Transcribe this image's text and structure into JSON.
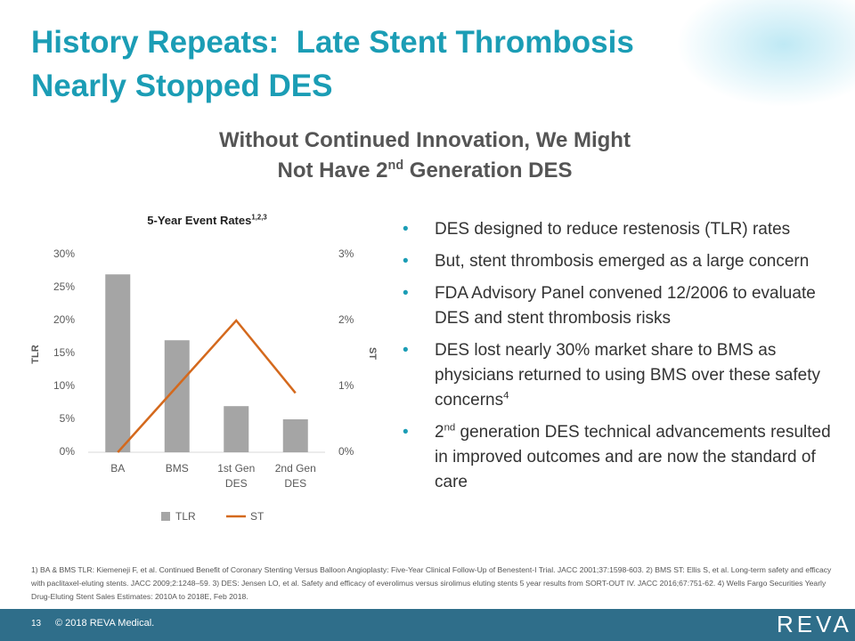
{
  "title_lines": [
    "History Repeats:  Late Stent Thrombosis",
    "Nearly Stopped DES"
  ],
  "subtitle": {
    "line1": "Without Continued Innovation, We Might",
    "line2": [
      {
        "text": "Not Have 2"
      },
      {
        "sup": "nd"
      },
      {
        "text": " Generation DES"
      }
    ]
  },
  "chart_data": {
    "type": "bar-line",
    "title": "5-Year Event Rates",
    "title_sup": "1,2,3",
    "categories": [
      "BA",
      "BMS",
      "1st Gen DES",
      "2nd Gen DES"
    ],
    "series": [
      {
        "name": "TLR",
        "type": "bar",
        "color": "#a5a5a5",
        "values": [
          27,
          17,
          7,
          5
        ]
      },
      {
        "name": "ST",
        "type": "line",
        "axis": "y2",
        "color": "#d4691d",
        "values": [
          0,
          1.0,
          2.0,
          0.9
        ]
      }
    ],
    "ylabel": "TLR",
    "y2label": "ST",
    "ylim": [
      0,
      30
    ],
    "yticks": [
      {
        "value": 0,
        "label": "0%"
      },
      {
        "value": 5,
        "label": "5%"
      },
      {
        "value": 10,
        "label": "10%"
      },
      {
        "value": 15,
        "label": "15%"
      },
      {
        "value": 20,
        "label": "20%"
      },
      {
        "value": 25,
        "label": "25%"
      },
      {
        "value": 30,
        "label": "30%"
      }
    ],
    "y2lim": [
      0,
      3
    ],
    "y2ticks": [
      {
        "value": 0,
        "label": "0%"
      },
      {
        "value": 1,
        "label": "1%"
      },
      {
        "value": 2,
        "label": "2%"
      },
      {
        "value": 3,
        "label": "3%"
      }
    ],
    "grid": false,
    "legend": "bottom"
  },
  "bullets": [
    [
      {
        "text": "DES designed to reduce restenosis (TLR) rates"
      }
    ],
    [
      {
        "text": "But, stent thrombosis emerged as a large concern"
      }
    ],
    [
      {
        "text": "FDA Advisory Panel convened 12/2006 to evaluate DES and stent thrombosis risks"
      }
    ],
    [
      {
        "text": "DES lost nearly 30% market share to BMS as physicians returned to using BMS over these safety concerns"
      },
      {
        "sup": "4"
      }
    ],
    [
      {
        "text": "2"
      },
      {
        "sup": "nd"
      },
      {
        "text": " generation DES technical advancements resulted in improved outcomes and are now the standard of care"
      }
    ]
  ],
  "footnotes": "1) BA & BMS TLR: Kiemeneji F, et al. Continued Benefit of Coronary Stenting Versus Balloon Angioplasty: Five-Year Clinical Follow-Up of Benestent-I Trial. JACC 2001;37:1598-603. 2) BMS ST: Ellis S, et al. Long-term safety and efficacy with paclitaxel-eluting stents. JACC 2009;2:1248–59. 3) DES: Jensen LO, et al. Safety and efficacy of everolimus versus sirolimus eluting stents 5 year results from SORT-OUT IV. JACC 2016;67:751-62. 4) Wells Fargo Securities Yearly Drug-Eluting Stent Sales Estimates: 2010A to 2018E, Feb 2018.",
  "footer": {
    "page": "13",
    "copyright": "© 2018 REVA Medical.",
    "logo": "REVA"
  }
}
